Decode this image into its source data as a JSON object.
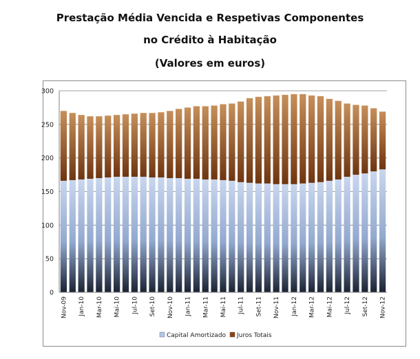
{
  "titles": {
    "line1": "Prestação Média Vencida e Respetivas Componentes",
    "line2": "no Crédito à Habitação",
    "line3": "(Valores em euros)"
  },
  "chart_data": {
    "type": "bar",
    "stacked": true,
    "categories": [
      "Nov-09",
      "Dez-09",
      "Jan-10",
      "Fev-10",
      "Mar-10",
      "Abr-10",
      "Mai-10",
      "Jun-10",
      "Jul-10",
      "Ago-10",
      "Set-10",
      "Out-10",
      "Nov-10",
      "Dez-10",
      "Jan-11",
      "Fev-11",
      "Mar-11",
      "Abr-11",
      "Mai-11",
      "Jun-11",
      "Jul-11",
      "Ago-11",
      "Set-11",
      "Out-11",
      "Nov-11",
      "Dez-11",
      "Jan-12",
      "Fev-12",
      "Mar-12",
      "Abr-12",
      "Mai-12",
      "Jun-12",
      "Jul-12",
      "Ago-12",
      "Set-12",
      "Out-12",
      "Nov-12"
    ],
    "tick_labels": [
      "Nov-09",
      "Jan-10",
      "Mar-10",
      "Mai-10",
      "Jul-10",
      "Set-10",
      "Nov-10",
      "Jan-11",
      "Mar-11",
      "Mai-11",
      "Jul-11",
      "Set-11",
      "Nov-11",
      "Jan-12",
      "Mar-12",
      "Mai-12",
      "Jul-12",
      "Set-12",
      "Nov-12"
    ],
    "series": [
      {
        "name": "Capital Amortizado",
        "color": "#b4c6e7",
        "values": [
          166,
          167,
          168,
          169,
          170,
          171,
          172,
          172,
          172,
          172,
          171,
          171,
          170,
          170,
          169,
          169,
          168,
          168,
          167,
          166,
          164,
          163,
          162,
          162,
          161,
          161,
          161,
          162,
          163,
          164,
          166,
          168,
          172,
          175,
          177,
          180,
          183
        ]
      },
      {
        "name": "Juros Totais",
        "color": "#8b4513",
        "values": [
          104,
          100,
          96,
          93,
          92,
          92,
          92,
          93,
          94,
          95,
          96,
          97,
          100,
          103,
          106,
          108,
          109,
          110,
          113,
          115,
          120,
          126,
          129,
          130,
          132,
          133,
          134,
          133,
          130,
          128,
          122,
          117,
          109,
          104,
          101,
          94,
          86
        ]
      }
    ],
    "yticks": [
      0,
      50,
      100,
      150,
      200,
      250,
      300
    ],
    "ylim": [
      0,
      300
    ],
    "grid": true,
    "legend_position": "bottom"
  }
}
